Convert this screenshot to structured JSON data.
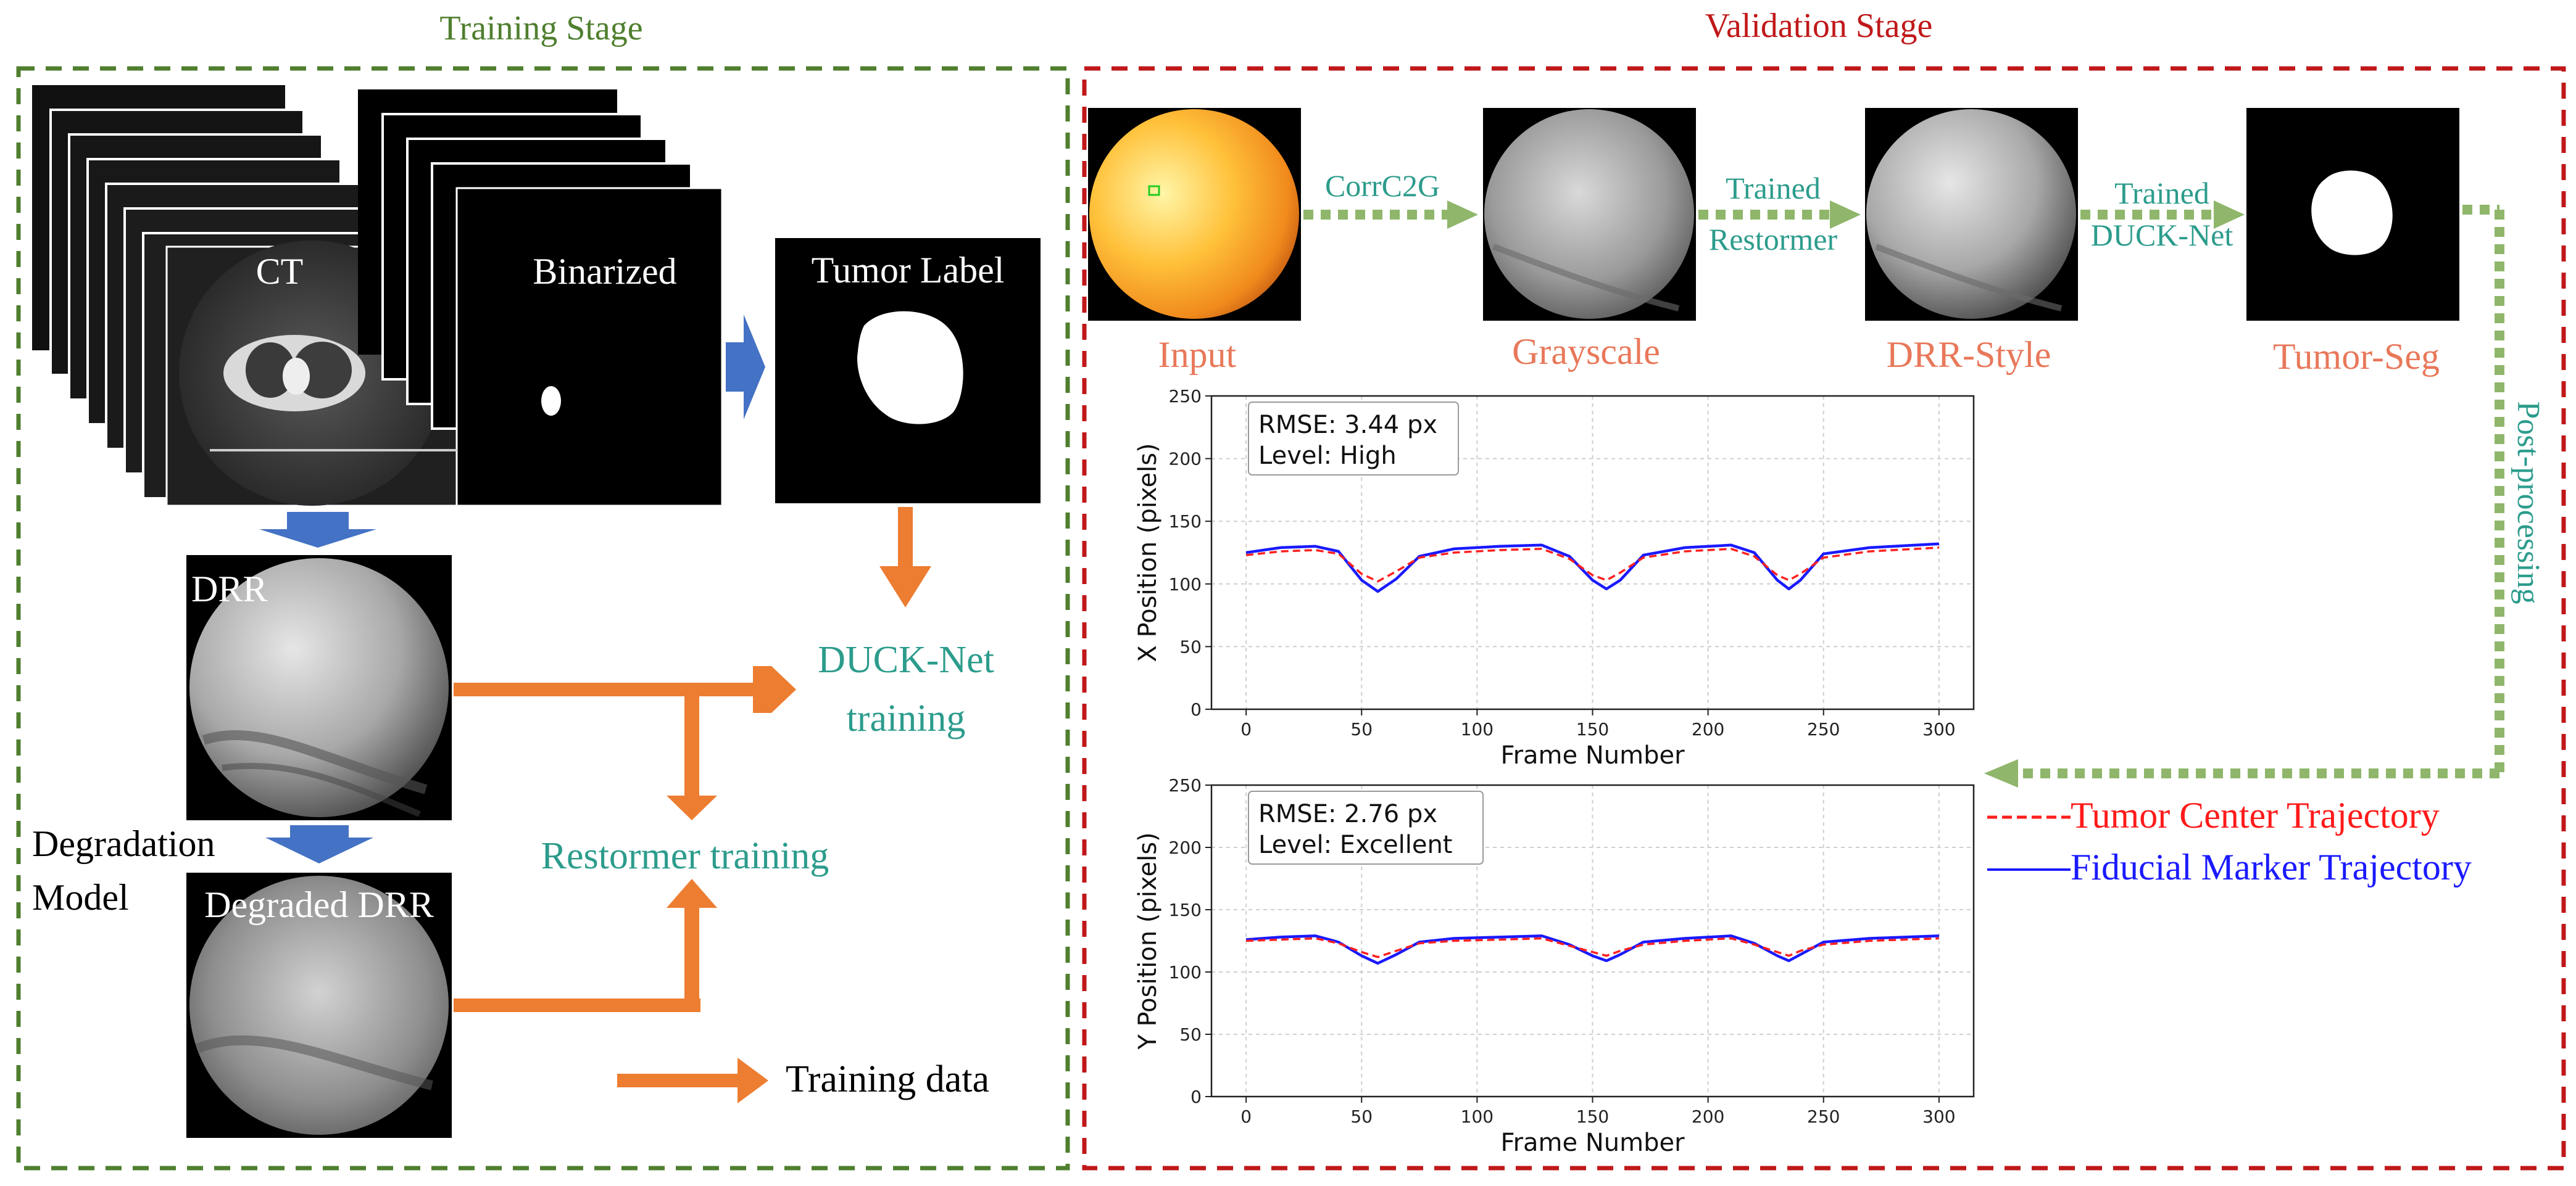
{
  "colors": {
    "training_border": "#4f7f2f",
    "validation_border": "#c0181a",
    "orange_arrow": "#ed7d31",
    "blue_arrow": "#4472c4",
    "teal_text": "#2c9c8c",
    "salmon_text": "#e8785a",
    "green_dotted": "#8fb66a",
    "tumor_series": "#ff2020",
    "fiducial_series": "#1a1aff"
  },
  "training": {
    "title": "Training Stage",
    "ct_label": "CT",
    "binarized_label": "Binarized",
    "tumor_label": "Tumor Label",
    "drr_label": "DRR",
    "degradation_model": "Degradation",
    "degradation_model_2": "Model",
    "degraded_drr_label": "Degraded DRR",
    "duck_net_training_1": "DUCK-Net",
    "duck_net_training_2": "training",
    "restormer_training": "Restormer training",
    "legend_training_data": "Training data"
  },
  "validation": {
    "title": "Validation Stage",
    "input_label": "Input",
    "grayscale_label": "Grayscale",
    "drr_style_label": "DRR-Style",
    "tumor_seg_label": "Tumor-Seg",
    "step_corrc2g": "CorrC2G",
    "step_trained_1": "Trained",
    "step_restormer": "Restormer",
    "step_trained_2": "Trained",
    "step_ducknet": "DUCK-Net",
    "post_processing": "Post-processing",
    "legend_tumor": "Tumor Center Trajectory",
    "legend_fiducial": "Fiducial Marker Trajectory"
  },
  "chart_data": [
    {
      "type": "line",
      "xlabel": "Frame Number",
      "ylabel": "X Position (pixels)",
      "xlim": [
        -15,
        315
      ],
      "ylim": [
        0,
        250
      ],
      "xticks": [
        0,
        50,
        100,
        150,
        200,
        250,
        300
      ],
      "yticks": [
        0,
        50,
        100,
        150,
        200,
        250
      ],
      "grid": true,
      "annotation_1": "RMSE: 3.44 px",
      "annotation_2": "Level: High",
      "series": [
        {
          "name": "Fiducial Marker Trajectory",
          "style": "solid",
          "x": [
            0,
            15,
            30,
            40,
            50,
            57,
            65,
            75,
            90,
            110,
            128,
            140,
            150,
            156,
            162,
            172,
            190,
            210,
            220,
            230,
            235,
            240,
            250,
            270,
            300
          ],
          "y": [
            125,
            129,
            130,
            126,
            103,
            94,
            104,
            122,
            128,
            130,
            131,
            122,
            103,
            96,
            103,
            123,
            129,
            131,
            125,
            103,
            96,
            103,
            124,
            129,
            132
          ]
        },
        {
          "name": "Tumor Center Trajectory",
          "style": "dashed",
          "x": [
            0,
            15,
            30,
            40,
            50,
            57,
            65,
            75,
            90,
            110,
            128,
            140,
            150,
            156,
            162,
            172,
            190,
            210,
            220,
            230,
            235,
            240,
            250,
            270,
            300
          ],
          "y": [
            123,
            126,
            127,
            124,
            108,
            102,
            110,
            121,
            125,
            127,
            128,
            120,
            107,
            103,
            109,
            121,
            126,
            128,
            122,
            107,
            103,
            108,
            121,
            126,
            129
          ]
        }
      ]
    },
    {
      "type": "line",
      "xlabel": "Frame Number",
      "ylabel": "Y Position (pixels)",
      "xlim": [
        -15,
        315
      ],
      "ylim": [
        0,
        250
      ],
      "xticks": [
        0,
        50,
        100,
        150,
        200,
        250,
        300
      ],
      "yticks": [
        0,
        50,
        100,
        150,
        200,
        250
      ],
      "grid": true,
      "annotation_1": "RMSE: 2.76 px",
      "annotation_2": "Level: Excellent",
      "series": [
        {
          "name": "Fiducial Marker Trajectory",
          "style": "solid",
          "x": [
            0,
            15,
            30,
            40,
            50,
            57,
            65,
            75,
            90,
            110,
            128,
            140,
            150,
            156,
            162,
            172,
            190,
            210,
            220,
            230,
            235,
            240,
            250,
            270,
            300
          ],
          "y": [
            126,
            128,
            129,
            124,
            113,
            107,
            114,
            124,
            127,
            128,
            129,
            122,
            113,
            109,
            114,
            124,
            127,
            129,
            123,
            113,
            109,
            114,
            124,
            127,
            129
          ]
        },
        {
          "name": "Tumor Center Trajectory",
          "style": "dashed",
          "x": [
            0,
            15,
            30,
            40,
            50,
            57,
            65,
            75,
            90,
            110,
            128,
            140,
            150,
            156,
            162,
            172,
            190,
            210,
            220,
            230,
            235,
            240,
            250,
            270,
            300
          ],
          "y": [
            125,
            126,
            127,
            123,
            116,
            112,
            117,
            123,
            125,
            126,
            127,
            121,
            116,
            113,
            117,
            122,
            125,
            127,
            122,
            116,
            113,
            117,
            122,
            125,
            127
          ]
        }
      ]
    }
  ]
}
